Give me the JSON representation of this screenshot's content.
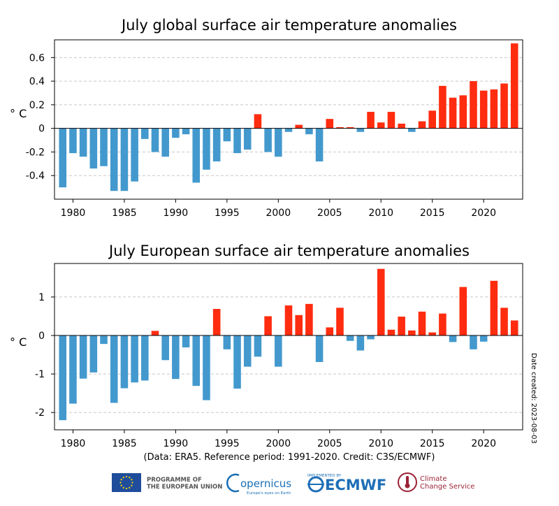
{
  "chart_data": [
    {
      "type": "bar",
      "title": "July global surface air temperature anomalies",
      "ylabel": "° C",
      "xlabel": "",
      "ylim": [
        -0.6,
        0.75
      ],
      "yticks": [
        -0.4,
        -0.2,
        0,
        0.2,
        0.4,
        0.6
      ],
      "ytick_labels": [
        "-0.4",
        "-0.2",
        "0",
        "0.2",
        "0.4",
        "0.6"
      ],
      "xticks": [
        1980,
        1985,
        1990,
        1995,
        2000,
        2005,
        2010,
        2015,
        2020
      ],
      "x": [
        1979,
        1980,
        1981,
        1982,
        1983,
        1984,
        1985,
        1986,
        1987,
        1988,
        1989,
        1990,
        1991,
        1992,
        1993,
        1994,
        1995,
        1996,
        1997,
        1998,
        1999,
        2000,
        2001,
        2002,
        2003,
        2004,
        2005,
        2006,
        2007,
        2008,
        2009,
        2010,
        2011,
        2012,
        2013,
        2014,
        2015,
        2016,
        2017,
        2018,
        2019,
        2020,
        2021,
        2022,
        2023
      ],
      "values": [
        -0.5,
        -0.21,
        -0.24,
        -0.34,
        -0.32,
        -0.53,
        -0.53,
        -0.45,
        -0.09,
        -0.2,
        -0.24,
        -0.08,
        -0.05,
        -0.46,
        -0.35,
        -0.28,
        -0.11,
        -0.21,
        -0.18,
        0.12,
        -0.2,
        -0.24,
        -0.03,
        0.03,
        -0.05,
        -0.28,
        0.08,
        0.01,
        0.01,
        -0.03,
        0.14,
        0.05,
        0.14,
        0.04,
        -0.03,
        0.06,
        0.15,
        0.36,
        0.26,
        0.28,
        0.4,
        0.32,
        0.33,
        0.38,
        0.72
      ],
      "positive_color": "#ff2c0f",
      "negative_color": "#4399cd",
      "grid": true
    },
    {
      "type": "bar",
      "title": "July European surface air temperature anomalies",
      "ylabel": "° C",
      "xlabel": "",
      "ylim": [
        -2.45,
        1.87
      ],
      "yticks": [
        -2,
        -1,
        0,
        1
      ],
      "ytick_labels": [
        "-2",
        "-1",
        "0",
        "1"
      ],
      "xticks": [
        1980,
        1985,
        1990,
        1995,
        2000,
        2005,
        2010,
        2015,
        2020
      ],
      "x": [
        1979,
        1980,
        1981,
        1982,
        1983,
        1984,
        1985,
        1986,
        1987,
        1988,
        1989,
        1990,
        1991,
        1992,
        1993,
        1994,
        1995,
        1996,
        1997,
        1998,
        1999,
        2000,
        2001,
        2002,
        2003,
        2004,
        2005,
        2006,
        2007,
        2008,
        2009,
        2010,
        2011,
        2012,
        2013,
        2014,
        2015,
        2016,
        2017,
        2018,
        2019,
        2020,
        2021,
        2022,
        2023
      ],
      "values": [
        -2.2,
        -1.77,
        -1.12,
        -0.96,
        -0.22,
        -1.75,
        -1.37,
        -1.22,
        -1.17,
        0.12,
        -0.64,
        -1.13,
        -0.31,
        -1.31,
        -1.68,
        0.69,
        -0.36,
        -1.38,
        -0.81,
        -0.55,
        0.5,
        -0.81,
        0.78,
        0.53,
        0.82,
        -0.69,
        0.21,
        0.72,
        -0.14,
        -0.39,
        -0.1,
        1.73,
        0.15,
        0.49,
        0.13,
        0.62,
        0.08,
        0.57,
        -0.17,
        1.26,
        -0.36,
        -0.16,
        1.42,
        0.72,
        0.39
      ],
      "positive_color": "#ff2c0f",
      "negative_color": "#4399cd",
      "grid": true
    }
  ],
  "footer": {
    "credit": "(Data: ERA5.  Reference period: 1991-2020.  Credit: C3S/ECMWF)",
    "date_created": "Date created: 2023-08-03"
  },
  "logos": {
    "eu_line1": "PROGRAMME OF",
    "eu_line2": "THE EUROPEAN UNION",
    "copernicus_name": "opernicus",
    "copernicus_tagline": "Europe's eyes on Earth",
    "ecmwf_small": "IMPLEMENTED BY",
    "ecmwf_name": "ECMWF",
    "c3s_line1": "Climate",
    "c3s_line2": "Change Service"
  },
  "colors": {
    "eu_blue": "#1f4d9c",
    "eu_star": "#ffdd00",
    "copernicus_blue": "#1a6fb5",
    "ecmwf_blue": "#1e6fb7",
    "c3s_red": "#9b2335"
  }
}
